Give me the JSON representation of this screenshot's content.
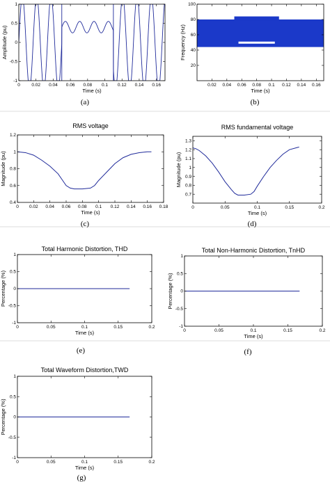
{
  "colors": {
    "line": "#1f2a9a",
    "background": "#ffffff",
    "axis": "#000000"
  },
  "chart_data": [
    {
      "id": "a",
      "type": "line",
      "caption": "(a)",
      "title": "",
      "xlabel": "Time (s)",
      "ylabel": "Amplitude (pu)",
      "xlim": [
        0,
        0.17
      ],
      "ylim": [
        -1,
        1
      ],
      "xticks": [
        "0",
        "0.02",
        "0.04",
        "0.06",
        "0.08",
        "0.1",
        "0.12",
        "0.14",
        "0.16"
      ],
      "yticks": [
        "-1",
        "-0.5",
        "0",
        "0.5",
        "1"
      ],
      "grid": false,
      "series": [
        {
          "signal": "sinusoid",
          "frequency_hz": 60,
          "amplitude_pu": 1.2,
          "sag": {
            "start_s": 0.05,
            "end_s": 0.11,
            "amplitude_pu": 0.55,
            "offset_pu": 0.4
          }
        }
      ]
    },
    {
      "id": "b",
      "type": "heatmap",
      "caption": "(b)",
      "title": "",
      "xlabel": "Time (s)",
      "ylabel": "Frequency (Hz)",
      "xlim": [
        0,
        0.17
      ],
      "ylim": [
        0,
        100
      ],
      "xticks": [
        "0.02",
        "0.04",
        "0.06",
        "0.08",
        "0.1",
        "0.12",
        "0.14",
        "0.16"
      ],
      "yticks": [
        "20",
        "40",
        "60",
        "80",
        "100"
      ],
      "grid": false,
      "bands": [
        {
          "f_low": 56,
          "f_high": 68,
          "color": "#e0281a"
        },
        {
          "f_low": 52,
          "f_high": 72,
          "color": "#f5d21a"
        },
        {
          "f_low": 48,
          "f_high": 76,
          "color": "#27c6d8"
        },
        {
          "f_low": 44,
          "f_high": 80,
          "color": "#1b39c9"
        }
      ],
      "sag_window": {
        "t_start": 0.05,
        "t_end": 0.11
      }
    },
    {
      "id": "c",
      "type": "line",
      "caption": "(c)",
      "title": "RMS voltage",
      "xlabel": "Time (s)",
      "ylabel": "Magnitude (pu)",
      "xlim": [
        0,
        0.18
      ],
      "ylim": [
        0.4,
        1.2
      ],
      "xticks": [
        "0",
        "0.02",
        "0.04",
        "0.06",
        "0.08",
        "0.1",
        "0.12",
        "0.14",
        "0.16",
        "0.18"
      ],
      "yticks": [
        "0.4",
        "0.6",
        "0.8",
        "1",
        "1.2"
      ],
      "grid": false,
      "series": [
        {
          "x": [
            0,
            0.01,
            0.02,
            0.03,
            0.04,
            0.05,
            0.055,
            0.06,
            0.065,
            0.07,
            0.08,
            0.09,
            0.095,
            0.1,
            0.11,
            0.12,
            0.13,
            0.14,
            0.15,
            0.16,
            0.165
          ],
          "y": [
            1.0,
            0.99,
            0.96,
            0.9,
            0.83,
            0.74,
            0.67,
            0.6,
            0.57,
            0.56,
            0.56,
            0.57,
            0.6,
            0.66,
            0.76,
            0.86,
            0.93,
            0.97,
            0.99,
            1.0,
            1.0
          ]
        }
      ]
    },
    {
      "id": "d",
      "type": "line",
      "caption": "(d)",
      "title": "RMS fundamental voltage",
      "xlabel": "Time (s)",
      "ylabel": "Magnitude (pu)",
      "xlim": [
        0,
        0.2
      ],
      "ylim": [
        0.6,
        1.35
      ],
      "xticks": [
        "0",
        "0.05",
        "0.1",
        "0.15",
        "0.2"
      ],
      "yticks": [
        "0.7",
        "0.8",
        "0.9",
        "1",
        "1.1",
        "1.2",
        "1.3"
      ],
      "grid": false,
      "series": [
        {
          "x": [
            0,
            0.005,
            0.01,
            0.02,
            0.03,
            0.04,
            0.05,
            0.06,
            0.065,
            0.07,
            0.08,
            0.09,
            0.095,
            0.1,
            0.11,
            0.12,
            0.13,
            0.14,
            0.15,
            0.16,
            0.165
          ],
          "y": [
            1.22,
            1.21,
            1.19,
            1.13,
            1.05,
            0.95,
            0.84,
            0.75,
            0.71,
            0.69,
            0.69,
            0.7,
            0.73,
            0.79,
            0.9,
            1.0,
            1.08,
            1.15,
            1.2,
            1.22,
            1.23
          ]
        }
      ]
    },
    {
      "id": "e",
      "type": "line",
      "caption": "(e)",
      "title": "Total Harmonic Distortion, THD",
      "xlabel": "Time (s)",
      "ylabel": "Percentage (%)",
      "xlim": [
        0,
        0.2
      ],
      "ylim": [
        -1,
        1
      ],
      "xticks": [
        "0",
        "0.05",
        "0.1",
        "0.15",
        "0.2"
      ],
      "yticks": [
        "-1",
        "-0.5",
        "0",
        "0.5",
        "1"
      ],
      "grid": false,
      "series": [
        {
          "x": [
            0,
            0.167
          ],
          "y": [
            0,
            0
          ]
        }
      ]
    },
    {
      "id": "f",
      "type": "line",
      "caption": "(f)",
      "title": "Total Non-Harmonic Distortion, TnHD",
      "xlabel": "Time (s)",
      "ylabel": "Percentage (%)",
      "xlim": [
        0,
        0.2
      ],
      "ylim": [
        -1,
        1
      ],
      "xticks": [
        "0",
        "0.05",
        "0.1",
        "0.15",
        "0.2"
      ],
      "yticks": [
        "-1",
        "-0.5",
        "0",
        "0.5",
        "1"
      ],
      "grid": false,
      "series": [
        {
          "x": [
            0,
            0.167
          ],
          "y": [
            0,
            0
          ]
        }
      ]
    },
    {
      "id": "g",
      "type": "line",
      "caption": "(g)",
      "title": "Total Waveform Distortion,TWD",
      "xlabel": "Time (s)",
      "ylabel": "Percentage (%)",
      "xlim": [
        0,
        0.2
      ],
      "ylim": [
        -1,
        1
      ],
      "xticks": [
        "0",
        "0.05",
        "0.1",
        "0.15",
        "0.2"
      ],
      "yticks": [
        "-1",
        "-0.5",
        "0",
        "0.5",
        "1"
      ],
      "grid": false,
      "series": [
        {
          "x": [
            0,
            0.167
          ],
          "y": [
            0,
            0
          ]
        }
      ]
    }
  ]
}
